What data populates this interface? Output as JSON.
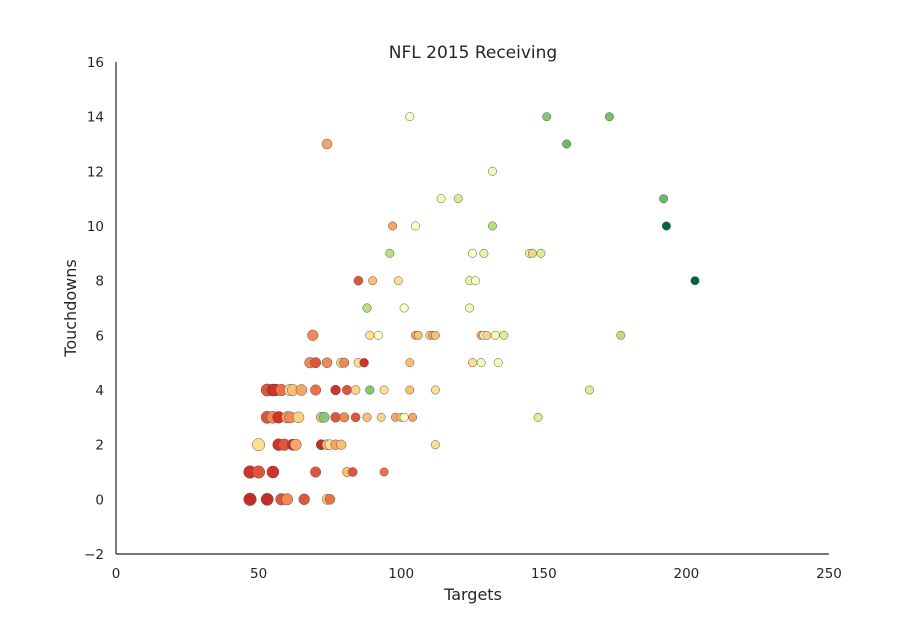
{
  "chart_data": {
    "type": "scatter",
    "title": "NFL 2015 Receiving",
    "xlabel": "Targets",
    "ylabel": "Touchdowns",
    "xlim": [
      0,
      250
    ],
    "ylim": [
      -2,
      16
    ],
    "xticks": [
      0,
      50,
      100,
      150,
      200,
      250
    ],
    "yticks": [
      -2,
      0,
      2,
      4,
      6,
      8,
      10,
      12,
      14,
      16
    ],
    "grid": false,
    "legend": "none",
    "points": [
      {
        "x": 103,
        "y": 14,
        "color": "#ffffbf"
      },
      {
        "x": 151,
        "y": 14,
        "color": "#86c96a"
      },
      {
        "x": 173,
        "y": 14,
        "color": "#74c365"
      },
      {
        "x": 74,
        "y": 13,
        "color": "#f9a460"
      },
      {
        "x": 158,
        "y": 13,
        "color": "#66bd63"
      },
      {
        "x": 132,
        "y": 12,
        "color": "#f4fab0"
      },
      {
        "x": 114,
        "y": 11,
        "color": "#f4fab0"
      },
      {
        "x": 120,
        "y": 11,
        "color": "#d9ef8b"
      },
      {
        "x": 192,
        "y": 11,
        "color": "#66bd63"
      },
      {
        "x": 97,
        "y": 10,
        "color": "#f9a460"
      },
      {
        "x": 105,
        "y": 10,
        "color": "#ffffbf"
      },
      {
        "x": 132,
        "y": 10,
        "color": "#b7e075"
      },
      {
        "x": 193,
        "y": 10,
        "color": "#006837"
      },
      {
        "x": 96,
        "y": 9,
        "color": "#b7e075"
      },
      {
        "x": 125,
        "y": 9,
        "color": "#ffffbf"
      },
      {
        "x": 129,
        "y": 9,
        "color": "#e6f59d"
      },
      {
        "x": 145,
        "y": 9,
        "color": "#e6f59d"
      },
      {
        "x": 146,
        "y": 9,
        "color": "#fdd283"
      },
      {
        "x": 149,
        "y": 9,
        "color": "#d9ef8b"
      },
      {
        "x": 85,
        "y": 8,
        "color": "#e55436"
      },
      {
        "x": 90,
        "y": 8,
        "color": "#fdbe6e"
      },
      {
        "x": 99,
        "y": 8,
        "color": "#fee08b"
      },
      {
        "x": 124,
        "y": 8,
        "color": "#e6f59d"
      },
      {
        "x": 126,
        "y": 8,
        "color": "#ffffbf"
      },
      {
        "x": 203,
        "y": 8,
        "color": "#006837"
      },
      {
        "x": 88,
        "y": 7,
        "color": "#b7e075"
      },
      {
        "x": 101,
        "y": 7,
        "color": "#ffffbf"
      },
      {
        "x": 124,
        "y": 7,
        "color": "#f4fab0"
      },
      {
        "x": 69,
        "y": 6,
        "color": "#f4894f"
      },
      {
        "x": 89,
        "y": 6,
        "color": "#fee08b"
      },
      {
        "x": 92,
        "y": 6,
        "color": "#ffffbf"
      },
      {
        "x": 105,
        "y": 6,
        "color": "#f9a460"
      },
      {
        "x": 106,
        "y": 6,
        "color": "#fdbe6e"
      },
      {
        "x": 110,
        "y": 6,
        "color": "#fdd283"
      },
      {
        "x": 111,
        "y": 6,
        "color": "#f9a460"
      },
      {
        "x": 112,
        "y": 6,
        "color": "#fdbe6e"
      },
      {
        "x": 128,
        "y": 6,
        "color": "#f9a460"
      },
      {
        "x": 129,
        "y": 6,
        "color": "#ffffbf"
      },
      {
        "x": 130,
        "y": 6,
        "color": "#fdd283"
      },
      {
        "x": 133,
        "y": 6,
        "color": "#f4fab0"
      },
      {
        "x": 136,
        "y": 6,
        "color": "#d9ef8b"
      },
      {
        "x": 177,
        "y": 6,
        "color": "#b7e075"
      },
      {
        "x": 68,
        "y": 5,
        "color": "#f4894f"
      },
      {
        "x": 70,
        "y": 5,
        "color": "#e55436"
      },
      {
        "x": 74,
        "y": 5,
        "color": "#f4894f"
      },
      {
        "x": 79,
        "y": 5,
        "color": "#fdd283"
      },
      {
        "x": 80,
        "y": 5,
        "color": "#f4894f"
      },
      {
        "x": 85,
        "y": 5,
        "color": "#fee08b"
      },
      {
        "x": 87,
        "y": 5,
        "color": "#d73027"
      },
      {
        "x": 103,
        "y": 5,
        "color": "#fdbe6e"
      },
      {
        "x": 125,
        "y": 5,
        "color": "#fee08b"
      },
      {
        "x": 128,
        "y": 5,
        "color": "#f4fab0"
      },
      {
        "x": 134,
        "y": 5,
        "color": "#f4fab0"
      },
      {
        "x": 53,
        "y": 4,
        "color": "#e55436"
      },
      {
        "x": 55,
        "y": 4,
        "color": "#c82b24"
      },
      {
        "x": 56,
        "y": 4,
        "color": "#d73027"
      },
      {
        "x": 58,
        "y": 4,
        "color": "#f46d43"
      },
      {
        "x": 61,
        "y": 4,
        "color": "#fee08b"
      },
      {
        "x": 62,
        "y": 4,
        "color": "#fdbe6e"
      },
      {
        "x": 65,
        "y": 4,
        "color": "#f9a460"
      },
      {
        "x": 70,
        "y": 4,
        "color": "#f46d43"
      },
      {
        "x": 77,
        "y": 4,
        "color": "#d73027"
      },
      {
        "x": 81,
        "y": 4,
        "color": "#e55436"
      },
      {
        "x": 84,
        "y": 4,
        "color": "#fdd283"
      },
      {
        "x": 89,
        "y": 4,
        "color": "#86c96a"
      },
      {
        "x": 94,
        "y": 4,
        "color": "#fee08b"
      },
      {
        "x": 103,
        "y": 4,
        "color": "#fdbe6e"
      },
      {
        "x": 112,
        "y": 4,
        "color": "#fee08b"
      },
      {
        "x": 166,
        "y": 4,
        "color": "#d9ef8b"
      },
      {
        "x": 53,
        "y": 3,
        "color": "#e55436"
      },
      {
        "x": 55,
        "y": 3,
        "color": "#f4894f"
      },
      {
        "x": 57,
        "y": 3,
        "color": "#d73027"
      },
      {
        "x": 60,
        "y": 3,
        "color": "#f9a460"
      },
      {
        "x": 61,
        "y": 3,
        "color": "#f4894f"
      },
      {
        "x": 64,
        "y": 3,
        "color": "#fdd283"
      },
      {
        "x": 72,
        "y": 3,
        "color": "#fdbe6e"
      },
      {
        "x": 73,
        "y": 3,
        "color": "#86c96a"
      },
      {
        "x": 77,
        "y": 3,
        "color": "#e55436"
      },
      {
        "x": 80,
        "y": 3,
        "color": "#f4894f"
      },
      {
        "x": 84,
        "y": 3,
        "color": "#e55436"
      },
      {
        "x": 88,
        "y": 3,
        "color": "#fdbe6e"
      },
      {
        "x": 93,
        "y": 3,
        "color": "#fdd283"
      },
      {
        "x": 98,
        "y": 3,
        "color": "#f9a460"
      },
      {
        "x": 100,
        "y": 3,
        "color": "#fdbe6e"
      },
      {
        "x": 101,
        "y": 3,
        "color": "#ffffbf"
      },
      {
        "x": 104,
        "y": 3,
        "color": "#f9a460"
      },
      {
        "x": 148,
        "y": 3,
        "color": "#d9ef8b"
      },
      {
        "x": 50,
        "y": 2,
        "color": "#fee08b"
      },
      {
        "x": 57,
        "y": 2,
        "color": "#d73027"
      },
      {
        "x": 59,
        "y": 2,
        "color": "#e55436"
      },
      {
        "x": 62,
        "y": 2,
        "color": "#c82b24"
      },
      {
        "x": 63,
        "y": 2,
        "color": "#f9a460"
      },
      {
        "x": 72,
        "y": 2,
        "color": "#c82b24"
      },
      {
        "x": 74,
        "y": 2,
        "color": "#fdbe6e"
      },
      {
        "x": 75,
        "y": 2,
        "color": "#fee08b"
      },
      {
        "x": 77,
        "y": 2,
        "color": "#f9a460"
      },
      {
        "x": 79,
        "y": 2,
        "color": "#fdbe6e"
      },
      {
        "x": 112,
        "y": 2,
        "color": "#fee08b"
      },
      {
        "x": 47,
        "y": 1,
        "color": "#d73027"
      },
      {
        "x": 50,
        "y": 1,
        "color": "#e55436"
      },
      {
        "x": 55,
        "y": 1,
        "color": "#d73027"
      },
      {
        "x": 70,
        "y": 1,
        "color": "#e55436"
      },
      {
        "x": 81,
        "y": 1,
        "color": "#fdbe6e"
      },
      {
        "x": 83,
        "y": 1,
        "color": "#e55436"
      },
      {
        "x": 94,
        "y": 1,
        "color": "#f46d43"
      },
      {
        "x": 47,
        "y": 0,
        "color": "#c82b24"
      },
      {
        "x": 53,
        "y": 0,
        "color": "#c82b24"
      },
      {
        "x": 58,
        "y": 0,
        "color": "#e55436"
      },
      {
        "x": 60,
        "y": 0,
        "color": "#f4894f"
      },
      {
        "x": 66,
        "y": 0,
        "color": "#e55436"
      },
      {
        "x": 74,
        "y": 0,
        "color": "#fdd283"
      },
      {
        "x": 75,
        "y": 0,
        "color": "#f46d43"
      }
    ]
  }
}
